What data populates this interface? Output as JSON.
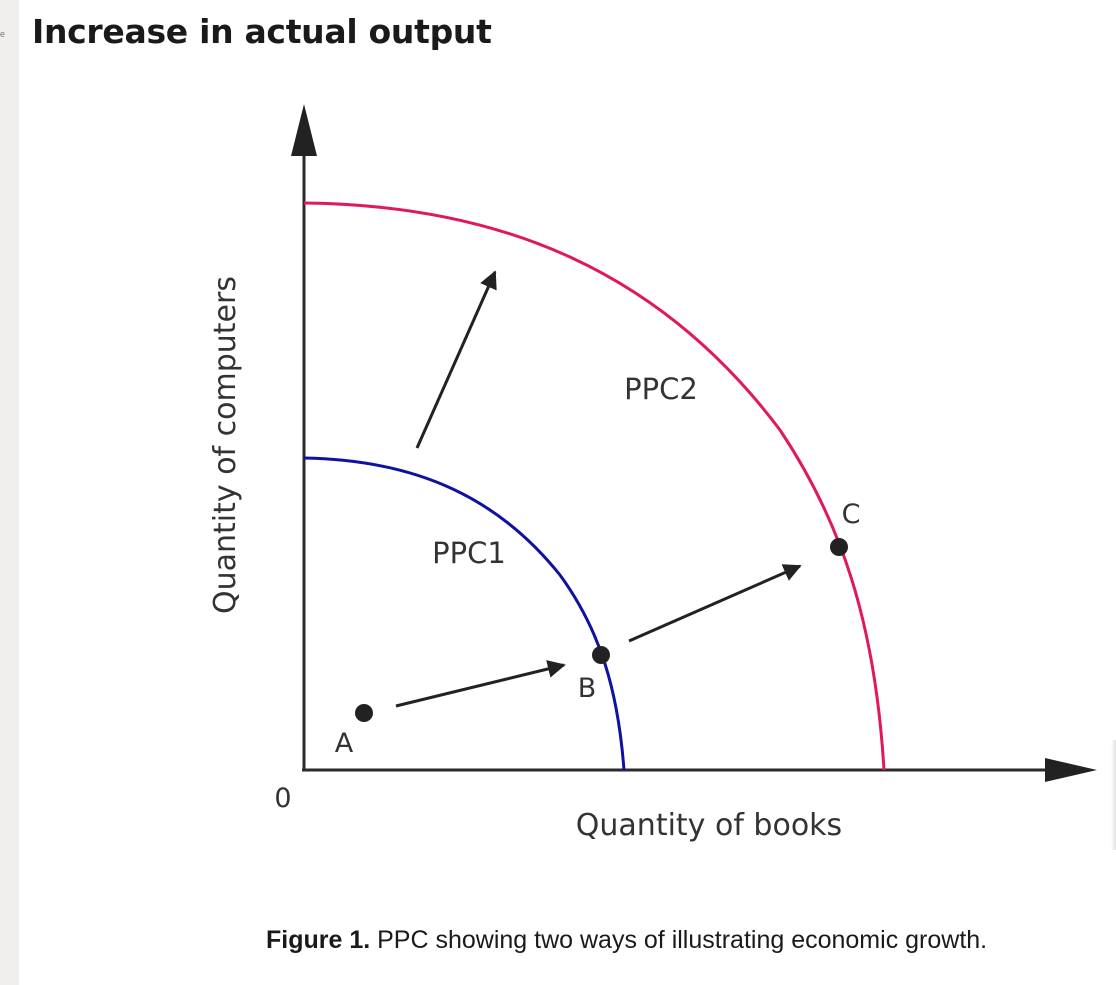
{
  "page": {
    "heading": "Increase in actual output",
    "rail_glyph": "e"
  },
  "diagram": {
    "y_axis_label": "Quantity of computers",
    "x_axis_label": "Quantity of books",
    "origin_label": "0",
    "curves": [
      {
        "name": "PPC1",
        "color": "#0f11a0"
      },
      {
        "name": "PPC2",
        "color": "#e0185c"
      }
    ],
    "points": [
      {
        "label": "A"
      },
      {
        "label": "B"
      },
      {
        "label": "C"
      }
    ],
    "arrows": [
      {
        "from": "PPC1",
        "to": "PPC2",
        "meaning": "outward shift"
      },
      {
        "from": "A",
        "to": "B"
      },
      {
        "from": "B",
        "to": "C"
      }
    ],
    "colors": {
      "axis": "#2a2a2a",
      "ppc1": "#0f11a0",
      "ppc2": "#e0185c",
      "point": "#222222"
    }
  },
  "caption": {
    "bold": "Figure 1.",
    "text": " PPC showing two ways of illustrating economic growth."
  }
}
